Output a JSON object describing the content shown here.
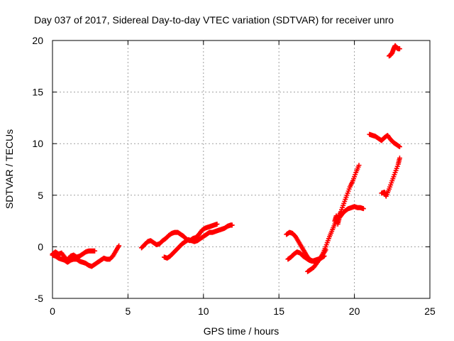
{
  "chart_data": {
    "type": "scatter",
    "title": "Day 037 of 2017, Sidereal Day-to-day VTEC variation (SDTVAR) for receiver unro",
    "xlabel": "GPS time / hours",
    "ylabel": "SDTVAR / TECUs",
    "xlim": [
      0,
      25
    ],
    "ylim": [
      -5,
      20
    ],
    "xticks": [
      "0",
      "5",
      "10",
      "15",
      "20",
      "25"
    ],
    "yticks": [
      "-5",
      "0",
      "5",
      "10",
      "15",
      "20"
    ],
    "grid": true,
    "marker": "+",
    "color": "#ff0000",
    "series": [
      {
        "points": [
          [
            0.0,
            -0.7
          ],
          [
            0.2,
            -0.5
          ],
          [
            0.4,
            -0.7
          ],
          [
            0.6,
            -0.6
          ],
          [
            0.8,
            -1.0
          ],
          [
            1.0,
            -1.3
          ],
          [
            1.2,
            -0.9
          ],
          [
            1.4,
            -0.8
          ],
          [
            1.6,
            -1.0
          ],
          [
            1.8,
            -0.9
          ],
          [
            2.0,
            -0.7
          ],
          [
            2.2,
            -0.5
          ],
          [
            2.4,
            -0.4
          ],
          [
            2.6,
            -0.4
          ],
          [
            2.8,
            -0.4
          ]
        ]
      },
      {
        "points": [
          [
            0.0,
            -0.8
          ],
          [
            0.2,
            -0.9
          ],
          [
            0.4,
            -1.1
          ],
          [
            0.6,
            -1.2
          ],
          [
            0.8,
            -1.3
          ],
          [
            1.0,
            -1.5
          ],
          [
            1.2,
            -1.3
          ],
          [
            1.4,
            -1.2
          ],
          [
            1.6,
            -1.2
          ],
          [
            1.8,
            -1.4
          ],
          [
            2.0,
            -1.5
          ],
          [
            2.2,
            -1.6
          ],
          [
            2.4,
            -1.8
          ],
          [
            2.6,
            -1.9
          ],
          [
            2.8,
            -1.7
          ],
          [
            3.0,
            -1.5
          ],
          [
            3.2,
            -1.3
          ],
          [
            3.4,
            -1.1
          ],
          [
            3.6,
            -1.2
          ],
          [
            3.8,
            -1.2
          ],
          [
            4.0,
            -0.9
          ],
          [
            4.2,
            -0.4
          ],
          [
            4.4,
            0.1
          ]
        ]
      },
      {
        "points": [
          [
            5.9,
            -0.1
          ],
          [
            6.1,
            0.2
          ],
          [
            6.3,
            0.5
          ],
          [
            6.5,
            0.6
          ],
          [
            6.7,
            0.4
          ],
          [
            6.9,
            0.2
          ],
          [
            7.1,
            0.3
          ],
          [
            7.3,
            0.6
          ],
          [
            7.5,
            0.8
          ],
          [
            7.7,
            1.1
          ],
          [
            7.9,
            1.3
          ],
          [
            8.1,
            1.4
          ],
          [
            8.3,
            1.4
          ],
          [
            8.5,
            1.2
          ],
          [
            8.7,
            1.0
          ],
          [
            8.9,
            0.7
          ],
          [
            9.1,
            0.6
          ],
          [
            9.3,
            0.8
          ],
          [
            9.5,
            0.9
          ],
          [
            9.7,
            1.2
          ],
          [
            9.9,
            1.6
          ],
          [
            10.1,
            1.8
          ],
          [
            10.3,
            1.9
          ],
          [
            10.5,
            2.0
          ],
          [
            10.7,
            2.1
          ],
          [
            10.9,
            2.2
          ]
        ]
      },
      {
        "points": [
          [
            7.4,
            -1.0
          ],
          [
            7.6,
            -1.1
          ],
          [
            7.8,
            -0.9
          ],
          [
            8.0,
            -0.6
          ],
          [
            8.2,
            -0.3
          ],
          [
            8.4,
            0.0
          ],
          [
            8.6,
            0.3
          ],
          [
            8.8,
            0.5
          ],
          [
            9.0,
            0.7
          ],
          [
            9.2,
            0.6
          ],
          [
            9.4,
            0.5
          ],
          [
            9.6,
            0.6
          ],
          [
            9.8,
            0.8
          ],
          [
            10.0,
            1.0
          ],
          [
            10.2,
            1.2
          ],
          [
            10.4,
            1.4
          ],
          [
            10.6,
            1.4
          ],
          [
            10.8,
            1.5
          ],
          [
            11.0,
            1.6
          ],
          [
            11.2,
            1.7
          ],
          [
            11.4,
            1.8
          ],
          [
            11.6,
            2.0
          ],
          [
            11.8,
            2.1
          ],
          [
            11.9,
            2.1
          ]
        ]
      },
      {
        "points": [
          [
            15.5,
            1.2
          ],
          [
            15.7,
            1.4
          ],
          [
            15.9,
            1.3
          ],
          [
            16.1,
            1.0
          ],
          [
            16.3,
            0.5
          ],
          [
            16.5,
            0.0
          ],
          [
            16.7,
            -0.5
          ],
          [
            16.9,
            -1.0
          ],
          [
            17.1,
            -1.3
          ],
          [
            17.3,
            -1.4
          ],
          [
            17.5,
            -1.4
          ],
          [
            17.7,
            -1.2
          ],
          [
            17.9,
            -0.8
          ],
          [
            18.1,
            -0.3
          ]
        ]
      },
      {
        "points": [
          [
            15.6,
            -1.2
          ],
          [
            15.8,
            -1.0
          ],
          [
            16.0,
            -0.7
          ],
          [
            16.2,
            -0.5
          ],
          [
            16.4,
            -0.6
          ],
          [
            16.6,
            -0.9
          ],
          [
            16.8,
            -1.1
          ],
          [
            17.0,
            -1.3
          ],
          [
            17.2,
            -1.4
          ],
          [
            17.4,
            -1.3
          ],
          [
            17.6,
            -1.2
          ],
          [
            17.8,
            -1.1
          ],
          [
            18.0,
            -0.9
          ]
        ]
      },
      {
        "points": [
          [
            16.9,
            -2.4
          ],
          [
            17.1,
            -2.2
          ],
          [
            17.3,
            -2.0
          ],
          [
            17.5,
            -1.6
          ],
          [
            17.7,
            -1.2
          ],
          [
            17.9,
            -0.7
          ],
          [
            18.1,
            0.0
          ],
          [
            18.3,
            0.8
          ],
          [
            18.5,
            1.5
          ],
          [
            18.7,
            2.2
          ],
          [
            18.9,
            2.8
          ],
          [
            19.1,
            3.4
          ],
          [
            19.3,
            4.2
          ],
          [
            19.5,
            5.0
          ],
          [
            19.7,
            5.8
          ],
          [
            19.9,
            6.4
          ],
          [
            20.1,
            7.2
          ],
          [
            20.3,
            7.9
          ]
        ]
      },
      {
        "points": [
          [
            18.7,
            2.5
          ],
          [
            18.8,
            3.0
          ],
          [
            18.9,
            2.2
          ],
          [
            19.0,
            2.8
          ],
          [
            19.2,
            3.2
          ],
          [
            19.4,
            3.5
          ],
          [
            19.6,
            3.7
          ],
          [
            19.8,
            3.8
          ],
          [
            20.0,
            3.9
          ],
          [
            20.2,
            3.8
          ],
          [
            20.4,
            3.8
          ],
          [
            20.6,
            3.7
          ]
        ]
      },
      {
        "points": [
          [
            21.0,
            10.9
          ],
          [
            21.2,
            10.8
          ],
          [
            21.4,
            10.7
          ],
          [
            21.6,
            10.5
          ],
          [
            21.8,
            10.3
          ],
          [
            22.0,
            10.6
          ],
          [
            22.2,
            10.8
          ],
          [
            22.4,
            10.4
          ],
          [
            22.6,
            10.1
          ],
          [
            22.8,
            9.9
          ],
          [
            23.0,
            9.7
          ]
        ]
      },
      {
        "points": [
          [
            21.8,
            5.2
          ],
          [
            22.0,
            5.3
          ],
          [
            22.1,
            4.9
          ],
          [
            22.3,
            5.6
          ],
          [
            22.5,
            6.4
          ],
          [
            22.7,
            7.2
          ],
          [
            22.9,
            8.0
          ],
          [
            23.0,
            8.6
          ]
        ]
      },
      {
        "points": [
          [
            22.3,
            18.5
          ],
          [
            22.4,
            18.6
          ],
          [
            22.5,
            18.8
          ],
          [
            22.6,
            19.2
          ],
          [
            22.7,
            19.5
          ],
          [
            22.8,
            19.3
          ],
          [
            22.9,
            19.2
          ],
          [
            23.0,
            19.2
          ]
        ]
      }
    ]
  }
}
